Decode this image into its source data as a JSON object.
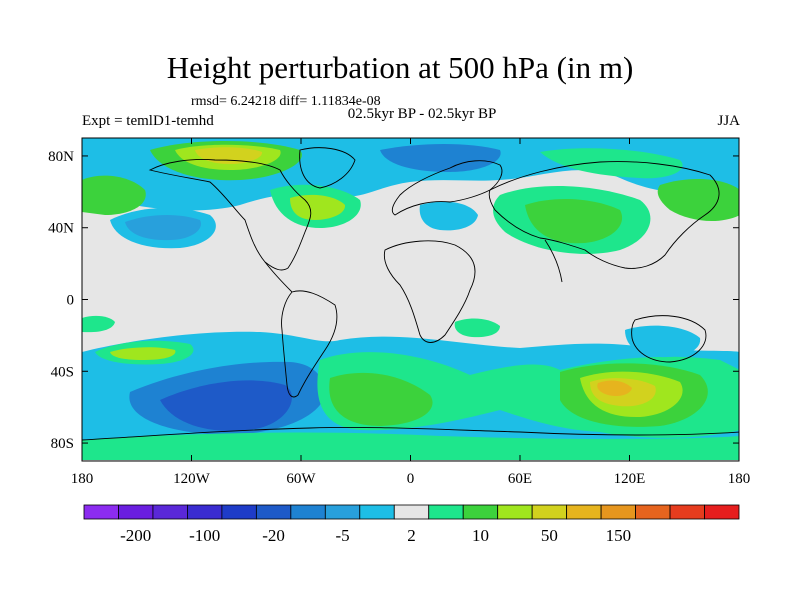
{
  "title": "Height perturbation at 500 hPa (in m)",
  "stats_line": "rmsd= 6.24218  diff= 1.11834e-08",
  "period_line": "02.5kyr BP - 02.5kyr BP",
  "experiment_label": "Expt = temlD1-temhd",
  "season_label": "JJA",
  "chart_data": {
    "type": "heatmap",
    "projection": "cylindrical-equidistant",
    "variable": "500 hPa geopotential height perturbation",
    "units": "m",
    "x_ticks": [
      "180",
      "120W",
      "60W",
      "0",
      "60E",
      "120E",
      "180"
    ],
    "x_tick_values": [
      -180,
      -120,
      -60,
      0,
      60,
      120,
      180
    ],
    "y_ticks": [
      "80N",
      "40N",
      "0",
      "40S",
      "80S"
    ],
    "y_tick_values": [
      80,
      40,
      0,
      -40,
      -80
    ],
    "xlim": [
      -180,
      180
    ],
    "ylim": [
      -90,
      90
    ],
    "colorbar": {
      "colors": [
        "#8c2cf0",
        "#6a1ee0",
        "#5a28d8",
        "#3a2cd0",
        "#1e3cc8",
        "#1e5ac8",
        "#1e82d2",
        "#28a0dc",
        "#1ebee6",
        "#e6e6e6",
        "#1ee68c",
        "#3cd23c",
        "#a0e61e",
        "#d2d21e",
        "#e6b41e",
        "#e6961e",
        "#e6641e",
        "#e63c1e",
        "#e61e1e"
      ],
      "labels": [
        "-200",
        "-100",
        "-20",
        "-5",
        "2",
        "10",
        "50",
        "150"
      ]
    }
  }
}
